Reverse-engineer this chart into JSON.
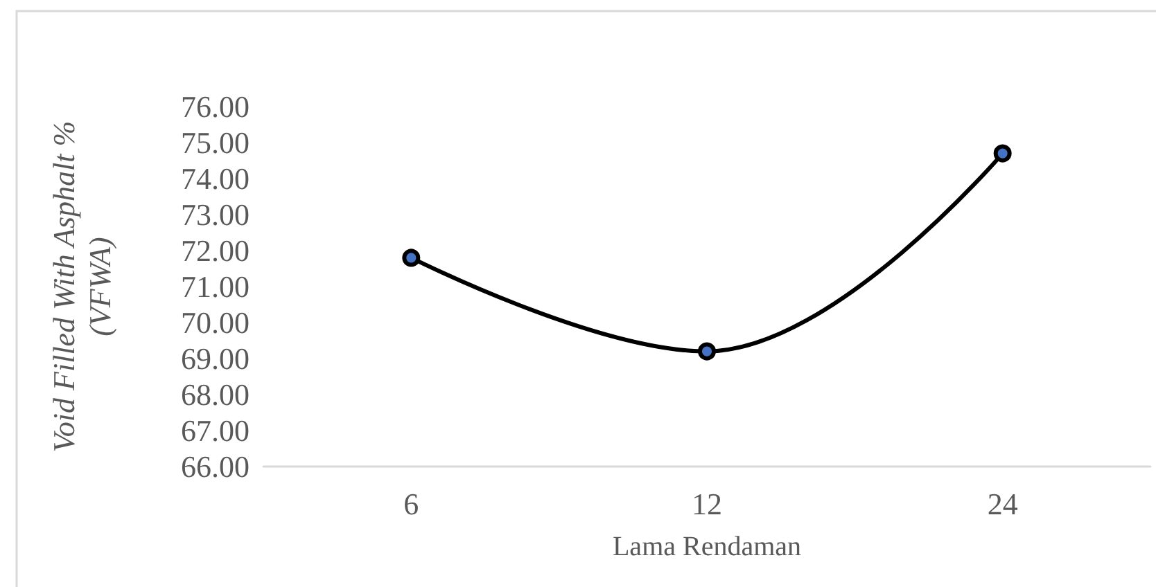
{
  "chart_data": {
    "type": "line",
    "xlabel": "Lama Rendaman",
    "ylabel": "Void Filled With Asphalt %\n(VFWA)",
    "categories": [
      "6",
      "12",
      "24"
    ],
    "series": [
      {
        "color": "#000000",
        "colors": [
          "#4472c4",
          "#4472c4",
          "#4472c4"
        ],
        "values": [
          71.8,
          69.2,
          74.7
        ]
      }
    ],
    "ylim": [
      66,
      76
    ],
    "yticks": [
      {
        "value": 66,
        "label": "66.00"
      },
      {
        "value": 67,
        "label": "67.00"
      },
      {
        "value": 68,
        "label": "68.00"
      },
      {
        "value": 69,
        "label": "69.00"
      },
      {
        "value": 70,
        "label": "70.00"
      },
      {
        "value": 71,
        "label": "71.00"
      },
      {
        "value": 72,
        "label": "72.00"
      },
      {
        "value": 73,
        "label": "73.00"
      },
      {
        "value": 74,
        "label": "74.00"
      },
      {
        "value": 75,
        "label": "75.00"
      },
      {
        "value": 76,
        "label": "76.00"
      }
    ],
    "grid": false,
    "marker": "circle",
    "line_style": "solid"
  }
}
